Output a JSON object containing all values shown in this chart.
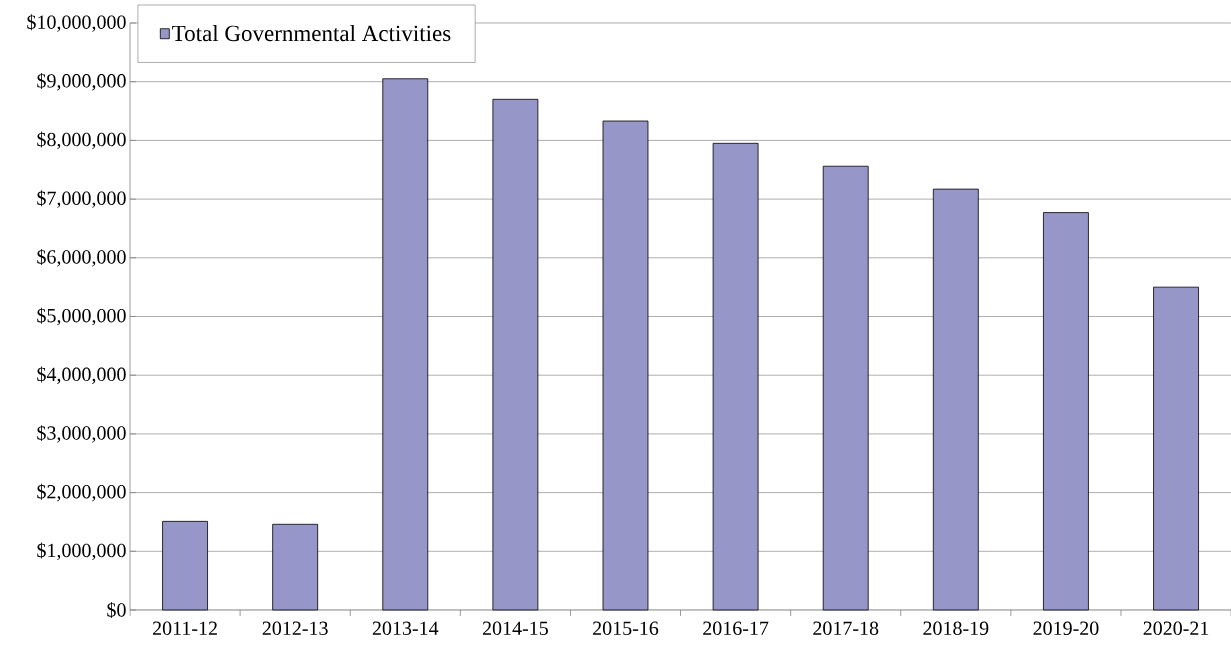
{
  "chart_data": {
    "type": "bar",
    "categories": [
      "2011-12",
      "2012-13",
      "2013-14",
      "2014-15",
      "2015-16",
      "2016-17",
      "2017-18",
      "2018-19",
      "2019-20",
      "2020-21"
    ],
    "series": [
      {
        "name": "Total Governmental Activities",
        "color": "#9696c8",
        "values": [
          1510000,
          1460000,
          9050000,
          8700000,
          8330000,
          7950000,
          7560000,
          7170000,
          6770000,
          5500000
        ]
      }
    ],
    "ylim": [
      0,
      10000000
    ],
    "yticks": [
      {
        "value": 0,
        "label": "$0"
      },
      {
        "value": 1000000,
        "label": "$1,000,000"
      },
      {
        "value": 2000000,
        "label": "$2,000,000"
      },
      {
        "value": 3000000,
        "label": "$3,000,000"
      },
      {
        "value": 4000000,
        "label": "$4,000,000"
      },
      {
        "value": 5000000,
        "label": "$5,000,000"
      },
      {
        "value": 6000000,
        "label": "$6,000,000"
      },
      {
        "value": 7000000,
        "label": "$7,000,000"
      },
      {
        "value": 8000000,
        "label": "$8,000,000"
      },
      {
        "value": 9000000,
        "label": "$9,000,000"
      },
      {
        "value": 10000000,
        "label": "$10,000,000"
      }
    ],
    "grid": "y",
    "legend": "top left"
  }
}
